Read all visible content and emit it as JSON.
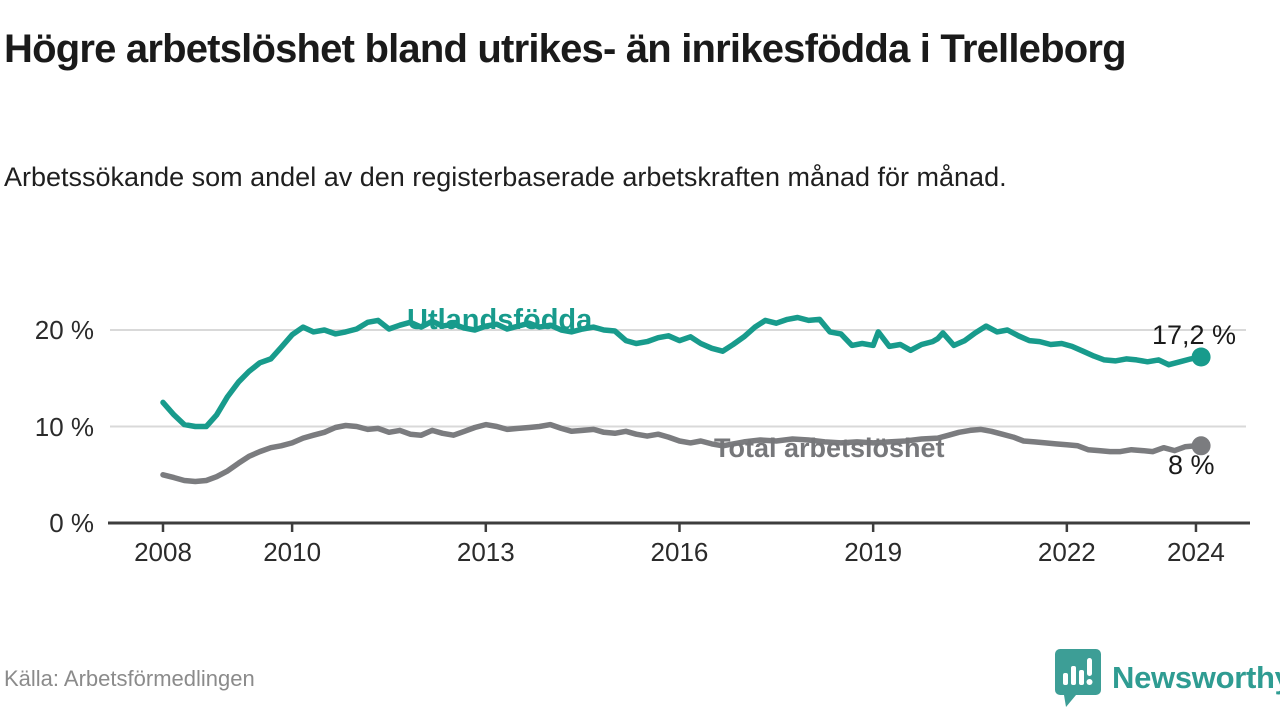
{
  "header": {
    "title": "Högre arbetslöshet bland utrikes- än inrikesfödda i Trelleborg",
    "subtitle": "Arbetssökande som andel av den registerbaserade arbetskraften månad för månad."
  },
  "footer": {
    "source": "Källa: Arbetsförmedlingen",
    "brand": "Newsworthy"
  },
  "chart_data": {
    "type": "line",
    "title": "Högre arbetslöshet bland utrikes- än inrikesfödda i Trelleborg",
    "xlabel": "",
    "ylabel": "",
    "grid": "horizontal",
    "grid_color": "#d9d9d9",
    "axis_color": "#3d3d3d",
    "xlim": [
      2007.2,
      2024.9
    ],
    "ylim": [
      0,
      22.5
    ],
    "x_ticks": [
      {
        "year": 2008,
        "label": "2008"
      },
      {
        "year": 2010,
        "label": "2010"
      },
      {
        "year": 2013,
        "label": "2013"
      },
      {
        "year": 2016,
        "label": "2016"
      },
      {
        "year": 2019,
        "label": "2019"
      },
      {
        "year": 2022,
        "label": "2022"
      },
      {
        "year": 2024,
        "label": "2024"
      }
    ],
    "y_ticks": [
      {
        "value": 0,
        "label": "0 %"
      },
      {
        "value": 10,
        "label": "10 %"
      },
      {
        "value": 20,
        "label": "20 %"
      }
    ],
    "series": [
      {
        "name": "Utlandsfödda",
        "color": "#189b8c",
        "end_label": "17,2 %",
        "end_value": 17.2,
        "points": [
          [
            2008.0,
            12.5
          ],
          [
            2008.17,
            11.2
          ],
          [
            2008.33,
            10.2
          ],
          [
            2008.5,
            10.0
          ],
          [
            2008.67,
            10.0
          ],
          [
            2008.83,
            11.2
          ],
          [
            2009.0,
            13.1
          ],
          [
            2009.17,
            14.6
          ],
          [
            2009.33,
            15.7
          ],
          [
            2009.5,
            16.6
          ],
          [
            2009.67,
            17.0
          ],
          [
            2009.83,
            18.2
          ],
          [
            2010.0,
            19.5
          ],
          [
            2010.17,
            20.3
          ],
          [
            2010.33,
            19.8
          ],
          [
            2010.5,
            20.0
          ],
          [
            2010.67,
            19.6
          ],
          [
            2010.83,
            19.8
          ],
          [
            2011.0,
            20.1
          ],
          [
            2011.17,
            20.8
          ],
          [
            2011.33,
            21.0
          ],
          [
            2011.5,
            20.1
          ],
          [
            2011.67,
            20.5
          ],
          [
            2011.83,
            20.8
          ],
          [
            2012.0,
            20.3
          ],
          [
            2012.17,
            20.9
          ],
          [
            2012.33,
            20.4
          ],
          [
            2012.5,
            20.6
          ],
          [
            2012.67,
            20.2
          ],
          [
            2012.83,
            20.0
          ],
          [
            2013.0,
            20.4
          ],
          [
            2013.17,
            20.6
          ],
          [
            2013.33,
            20.1
          ],
          [
            2013.5,
            20.4
          ],
          [
            2013.67,
            20.7
          ],
          [
            2013.83,
            20.3
          ],
          [
            2014.0,
            20.5
          ],
          [
            2014.17,
            20.0
          ],
          [
            2014.33,
            19.8
          ],
          [
            2014.5,
            20.1
          ],
          [
            2014.67,
            20.3
          ],
          [
            2014.83,
            20.0
          ],
          [
            2015.0,
            19.9
          ],
          [
            2015.17,
            18.9
          ],
          [
            2015.33,
            18.6
          ],
          [
            2015.5,
            18.8
          ],
          [
            2015.67,
            19.2
          ],
          [
            2015.83,
            19.4
          ],
          [
            2016.0,
            18.9
          ],
          [
            2016.17,
            19.3
          ],
          [
            2016.33,
            18.6
          ],
          [
            2016.5,
            18.1
          ],
          [
            2016.67,
            17.8
          ],
          [
            2016.83,
            18.5
          ],
          [
            2017.0,
            19.3
          ],
          [
            2017.17,
            20.3
          ],
          [
            2017.33,
            21.0
          ],
          [
            2017.5,
            20.7
          ],
          [
            2017.67,
            21.1
          ],
          [
            2017.83,
            21.3
          ],
          [
            2018.0,
            21.0
          ],
          [
            2018.17,
            21.1
          ],
          [
            2018.33,
            19.8
          ],
          [
            2018.5,
            19.6
          ],
          [
            2018.67,
            18.4
          ],
          [
            2018.83,
            18.6
          ],
          [
            2019.0,
            18.4
          ],
          [
            2019.08,
            19.8
          ],
          [
            2019.25,
            18.3
          ],
          [
            2019.42,
            18.5
          ],
          [
            2019.58,
            17.9
          ],
          [
            2019.75,
            18.5
          ],
          [
            2019.92,
            18.8
          ],
          [
            2020.0,
            19.1
          ],
          [
            2020.08,
            19.7
          ],
          [
            2020.25,
            18.4
          ],
          [
            2020.42,
            18.9
          ],
          [
            2020.58,
            19.7
          ],
          [
            2020.75,
            20.4
          ],
          [
            2020.92,
            19.8
          ],
          [
            2021.08,
            20.0
          ],
          [
            2021.25,
            19.4
          ],
          [
            2021.42,
            18.9
          ],
          [
            2021.58,
            18.8
          ],
          [
            2021.75,
            18.5
          ],
          [
            2021.92,
            18.6
          ],
          [
            2022.08,
            18.3
          ],
          [
            2022.25,
            17.8
          ],
          [
            2022.42,
            17.3
          ],
          [
            2022.58,
            16.9
          ],
          [
            2022.75,
            16.8
          ],
          [
            2022.92,
            17.0
          ],
          [
            2023.08,
            16.9
          ],
          [
            2023.25,
            16.7
          ],
          [
            2023.42,
            16.9
          ],
          [
            2023.58,
            16.4
          ],
          [
            2023.75,
            16.7
          ],
          [
            2023.92,
            17.0
          ],
          [
            2024.08,
            17.2
          ]
        ]
      },
      {
        "name": "Total arbetslöshet",
        "color": "#7b7c7f",
        "end_label": "8 %",
        "end_value": 8.0,
        "points": [
          [
            2008.0,
            5.0
          ],
          [
            2008.17,
            4.7
          ],
          [
            2008.33,
            4.4
          ],
          [
            2008.5,
            4.3
          ],
          [
            2008.67,
            4.4
          ],
          [
            2008.83,
            4.8
          ],
          [
            2009.0,
            5.4
          ],
          [
            2009.17,
            6.2
          ],
          [
            2009.33,
            6.9
          ],
          [
            2009.5,
            7.4
          ],
          [
            2009.67,
            7.8
          ],
          [
            2009.83,
            8.0
          ],
          [
            2010.0,
            8.3
          ],
          [
            2010.17,
            8.8
          ],
          [
            2010.33,
            9.1
          ],
          [
            2010.5,
            9.4
          ],
          [
            2010.67,
            9.9
          ],
          [
            2010.83,
            10.1
          ],
          [
            2011.0,
            10.0
          ],
          [
            2011.17,
            9.7
          ],
          [
            2011.33,
            9.8
          ],
          [
            2011.5,
            9.4
          ],
          [
            2011.67,
            9.6
          ],
          [
            2011.83,
            9.2
          ],
          [
            2012.0,
            9.1
          ],
          [
            2012.17,
            9.6
          ],
          [
            2012.33,
            9.3
          ],
          [
            2012.5,
            9.1
          ],
          [
            2012.67,
            9.5
          ],
          [
            2012.83,
            9.9
          ],
          [
            2013.0,
            10.2
          ],
          [
            2013.17,
            10.0
          ],
          [
            2013.33,
            9.7
          ],
          [
            2013.5,
            9.8
          ],
          [
            2013.67,
            9.9
          ],
          [
            2013.83,
            10.0
          ],
          [
            2014.0,
            10.2
          ],
          [
            2014.17,
            9.8
          ],
          [
            2014.33,
            9.5
          ],
          [
            2014.5,
            9.6
          ],
          [
            2014.67,
            9.7
          ],
          [
            2014.83,
            9.4
          ],
          [
            2015.0,
            9.3
          ],
          [
            2015.17,
            9.5
          ],
          [
            2015.33,
            9.2
          ],
          [
            2015.5,
            9.0
          ],
          [
            2015.67,
            9.2
          ],
          [
            2015.83,
            8.9
          ],
          [
            2016.0,
            8.5
          ],
          [
            2016.17,
            8.3
          ],
          [
            2016.33,
            8.5
          ],
          [
            2016.5,
            8.2
          ],
          [
            2016.67,
            8.0
          ],
          [
            2016.83,
            8.2
          ],
          [
            2017.0,
            8.4
          ],
          [
            2017.25,
            8.6
          ],
          [
            2017.5,
            8.5
          ],
          [
            2017.75,
            8.7
          ],
          [
            2018.0,
            8.6
          ],
          [
            2018.25,
            8.4
          ],
          [
            2018.5,
            8.3
          ],
          [
            2018.75,
            8.4
          ],
          [
            2019.0,
            8.3
          ],
          [
            2019.25,
            8.4
          ],
          [
            2019.5,
            8.5
          ],
          [
            2019.75,
            8.7
          ],
          [
            2020.0,
            8.8
          ],
          [
            2020.17,
            9.1
          ],
          [
            2020.33,
            9.4
          ],
          [
            2020.5,
            9.6
          ],
          [
            2020.67,
            9.7
          ],
          [
            2020.83,
            9.5
          ],
          [
            2021.0,
            9.2
          ],
          [
            2021.17,
            8.9
          ],
          [
            2021.33,
            8.5
          ],
          [
            2021.5,
            8.4
          ],
          [
            2021.67,
            8.3
          ],
          [
            2021.83,
            8.2
          ],
          [
            2022.0,
            8.1
          ],
          [
            2022.17,
            8.0
          ],
          [
            2022.33,
            7.6
          ],
          [
            2022.5,
            7.5
          ],
          [
            2022.67,
            7.4
          ],
          [
            2022.83,
            7.4
          ],
          [
            2023.0,
            7.6
          ],
          [
            2023.17,
            7.5
          ],
          [
            2023.33,
            7.4
          ],
          [
            2023.5,
            7.8
          ],
          [
            2023.67,
            7.5
          ],
          [
            2023.83,
            7.9
          ],
          [
            2024.0,
            8.0
          ],
          [
            2024.08,
            8.0
          ]
        ]
      }
    ]
  }
}
